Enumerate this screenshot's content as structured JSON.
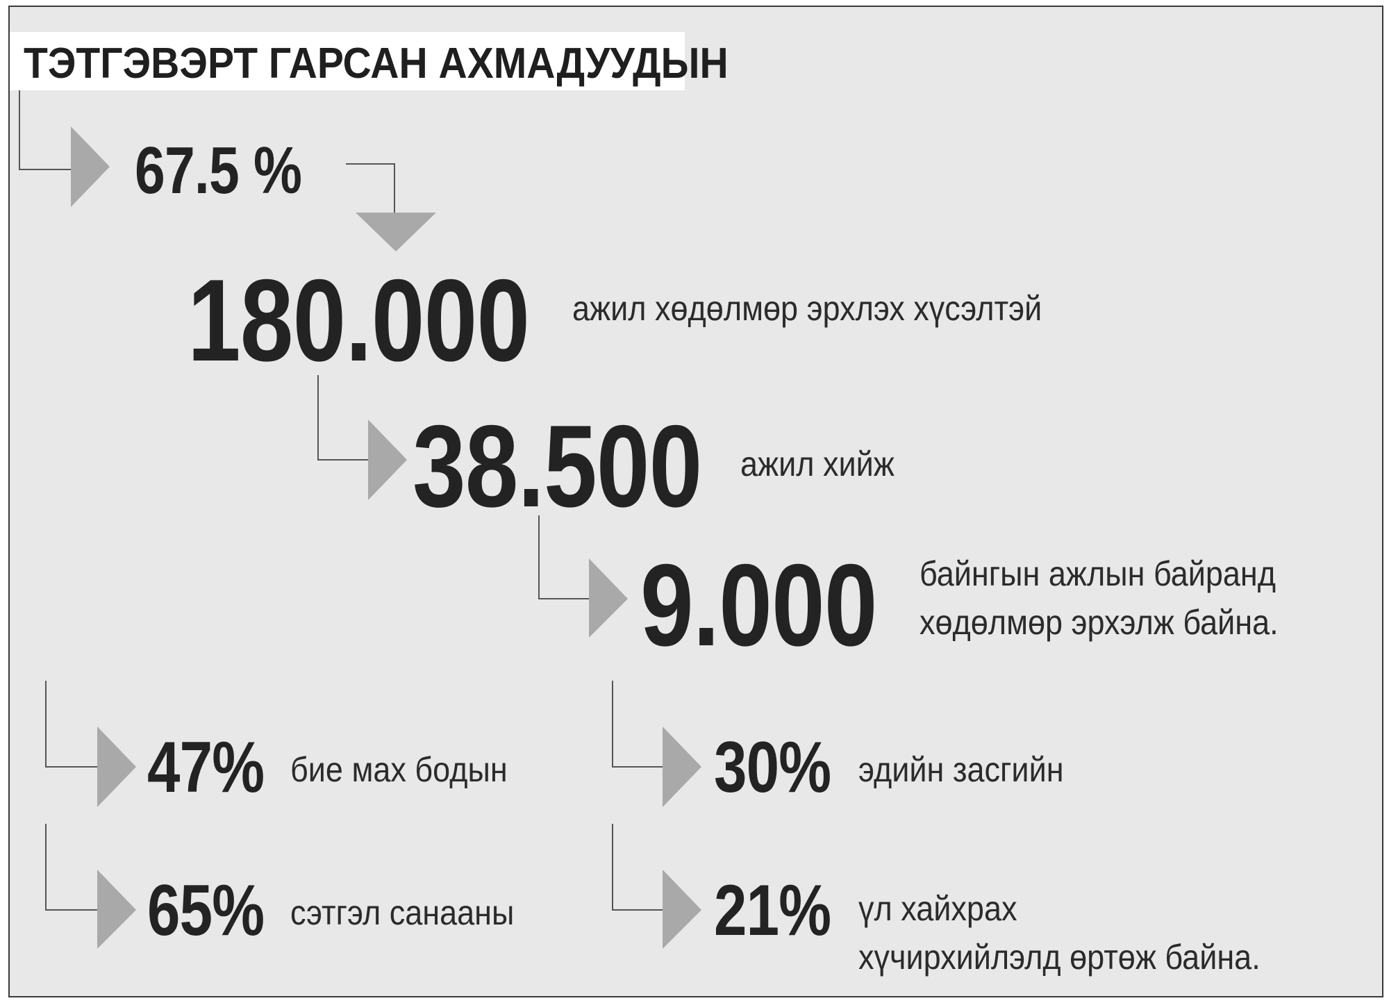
{
  "title": "ТЭТГЭВЭРТ ГАРСАН АХМАДУУДЫН",
  "colors": {
    "background": "#e8e8e9",
    "arrow": "#a9a9a9",
    "line": "#555555",
    "text": "#232323"
  },
  "stats": {
    "percent_total": {
      "value": "67.5 %"
    },
    "want_work": {
      "value": "180.000",
      "label": "ажил хөдөлмөр эрхлэх хүсэлтэй"
    },
    "working": {
      "value": "38.500",
      "label": "ажил хийж"
    },
    "permanent": {
      "value": "9.000",
      "label_line1": "байнгын ажлын байранд",
      "label_line2": "хөдөлмөр эрхэлж байна."
    }
  },
  "breakdown": [
    {
      "value": "47%",
      "label": "бие мах бодын"
    },
    {
      "value": "30%",
      "label": "эдийн засгийн"
    },
    {
      "value": "65%",
      "label": "сэтгэл санааны"
    },
    {
      "value": "21%",
      "label_line1": "үл хайхрах",
      "label_line2": "хүчирхийлэлд өртөж байна."
    }
  ]
}
